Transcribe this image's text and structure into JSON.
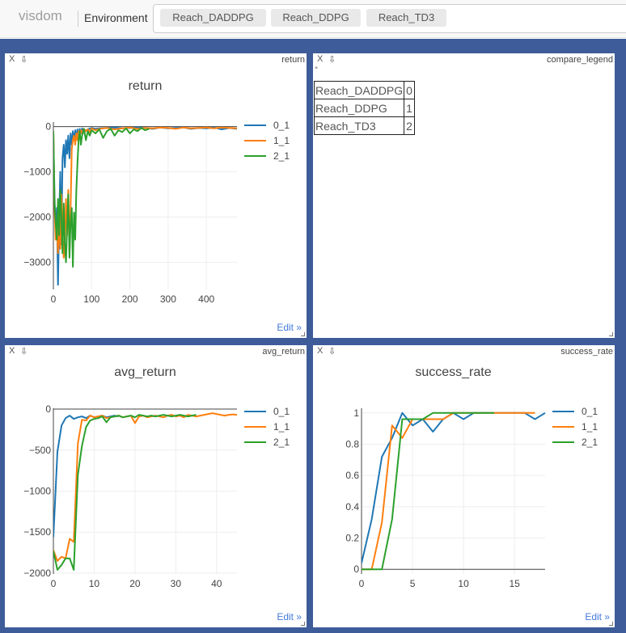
{
  "header": {
    "brand": "visdom",
    "env_label": "Environment",
    "env_tags": [
      "Reach_DADDPG",
      "Reach_DDPG",
      "Reach_TD3"
    ]
  },
  "pane_controls": {
    "close": "X",
    "download": "⇩",
    "edit": "Edit »"
  },
  "colors": {
    "workspace": "#3e5c99",
    "series": [
      "#1f77b4",
      "#ff7f0e",
      "#2ca02c"
    ],
    "link": "#447adb"
  },
  "panes": {
    "return": {
      "window_title": "return"
    },
    "compare_legend": {
      "window_title": "compare_legend",
      "quote": "\"",
      "rows": [
        {
          "name": "Reach_DADDPG",
          "id": "0"
        },
        {
          "name": "Reach_DDPG",
          "id": "1"
        },
        {
          "name": "Reach_TD3",
          "id": "2"
        }
      ]
    },
    "avg_return": {
      "window_title": "avg_return"
    },
    "success_rate": {
      "window_title": "success_rate"
    }
  },
  "chart_data": [
    {
      "id": "return",
      "type": "line",
      "title": "return",
      "xlabel": "",
      "ylabel": "",
      "xlim": [
        0,
        480
      ],
      "ylim": [
        -3600,
        100
      ],
      "xticks": [
        0,
        100,
        200,
        300,
        400
      ],
      "yticks": [
        0,
        -1000,
        -2000,
        -3000
      ],
      "grid": true,
      "legend": "top-right",
      "series": [
        {
          "name": "0_1",
          "x": [
            0,
            3,
            6,
            9,
            12,
            15,
            18,
            21,
            24,
            27,
            30,
            33,
            36,
            39,
            42,
            45,
            48,
            51,
            54,
            57,
            60,
            63,
            66,
            69,
            72,
            75,
            80,
            90,
            100,
            110,
            120,
            140,
            160,
            180,
            200,
            220,
            240,
            260,
            280,
            300,
            320,
            340,
            360,
            380,
            400,
            420,
            440,
            460,
            480
          ],
          "y": [
            -200,
            -1500,
            -2400,
            -1800,
            -3500,
            -2100,
            -1000,
            -2600,
            -700,
            -400,
            -900,
            -300,
            -600,
            -200,
            -700,
            -150,
            -400,
            -100,
            -300,
            -80,
            -250,
            -60,
            -200,
            -50,
            -150,
            -40,
            -120,
            -60,
            -30,
            -50,
            -40,
            -30,
            -20,
            -40,
            -30,
            -20,
            -30,
            -50,
            -20,
            -40,
            -30,
            -20,
            -50,
            -30,
            -40,
            -20,
            -60,
            -30,
            -50
          ]
        },
        {
          "name": "1_1",
          "x": [
            0,
            3,
            6,
            9,
            12,
            15,
            18,
            21,
            24,
            27,
            30,
            33,
            36,
            39,
            42,
            45,
            48,
            51,
            54,
            57,
            60,
            63,
            66,
            69,
            72,
            75,
            80,
            85,
            90,
            95,
            100,
            110,
            120,
            140,
            160,
            180,
            200,
            220,
            240,
            260,
            280,
            300,
            320,
            340,
            360,
            380,
            400,
            420,
            440,
            460,
            480
          ],
          "y": [
            -100,
            -1800,
            -2500,
            -2200,
            -2800,
            -2000,
            -2700,
            -1500,
            -2300,
            -2900,
            -2500,
            -1600,
            -2400,
            -1400,
            -2800,
            -1800,
            -500,
            -300,
            -200,
            -400,
            -150,
            -300,
            -100,
            -200,
            -80,
            -150,
            -50,
            -100,
            -60,
            -120,
            -40,
            -80,
            -50,
            -30,
            -60,
            -40,
            -20,
            -50,
            -30,
            -40,
            -20,
            -30,
            -50,
            -20,
            -40,
            -30,
            -20,
            -40,
            -20,
            -30,
            -40
          ]
        },
        {
          "name": "2_1",
          "x": [
            0,
            3,
            6,
            9,
            12,
            15,
            18,
            21,
            24,
            27,
            30,
            33,
            36,
            39,
            42,
            45,
            48,
            51,
            54,
            57,
            60,
            63,
            66,
            69,
            72,
            75,
            80,
            85,
            90,
            95,
            100,
            110,
            120,
            130,
            140,
            150,
            160,
            170,
            180,
            190,
            200,
            210,
            220,
            230,
            240,
            250
          ],
          "y": [
            -100,
            -1700,
            -2100,
            -2500,
            -1600,
            -2400,
            -1400,
            -2000,
            -2800,
            -1700,
            -2600,
            -3000,
            -2200,
            -1500,
            -2900,
            -2100,
            -1800,
            -3100,
            -1900,
            -2500,
            -1400,
            -800,
            -300,
            -100,
            -400,
            -200,
            -50,
            -300,
            -100,
            -200,
            -80,
            -150,
            -60,
            -250,
            -100,
            -50,
            -200,
            -80,
            -120,
            -40,
            -150,
            -60,
            -100,
            -30,
            -80,
            -50
          ]
        }
      ]
    },
    {
      "id": "avg_return",
      "type": "line",
      "title": "avg_return",
      "xlabel": "",
      "ylabel": "",
      "xlim": [
        0,
        45
      ],
      "ylim": [
        -2010,
        10
      ],
      "xticks": [
        0,
        10,
        20,
        30,
        40
      ],
      "yticks": [
        0,
        -500,
        -1000,
        -1500,
        -2000
      ],
      "grid": true,
      "legend": "top-right",
      "series": [
        {
          "name": "0_1",
          "x": [
            0,
            1,
            2,
            3,
            4,
            5,
            6,
            7,
            8,
            9,
            10,
            11,
            12,
            13,
            14,
            15,
            16
          ],
          "y": [
            -1560,
            -520,
            -200,
            -110,
            -80,
            -120,
            -100,
            -90,
            -110,
            -80,
            -100,
            -90,
            -80,
            -100,
            -90,
            -80,
            -90
          ]
        },
        {
          "name": "1_1",
          "x": [
            0,
            1,
            2,
            3,
            4,
            5,
            6,
            7,
            8,
            9,
            10,
            11,
            12,
            13,
            14,
            15,
            16,
            17,
            18,
            19,
            20,
            21,
            22,
            23,
            24,
            25,
            26,
            27,
            28,
            29,
            30,
            31,
            32,
            33,
            34,
            35,
            36,
            37,
            38,
            39,
            40,
            41,
            42,
            43,
            44,
            45
          ],
          "y": [
            -1720,
            -1850,
            -1800,
            -1820,
            -1580,
            -1620,
            -420,
            -130,
            -140,
            -80,
            -100,
            -90,
            -80,
            -110,
            -100,
            -90,
            -80,
            -100,
            -90,
            -80,
            -170,
            -90,
            -80,
            -100,
            -90,
            -80,
            -90,
            -100,
            -80,
            -70,
            -90,
            -80,
            -100,
            -70,
            -80,
            -90,
            -80,
            -70,
            -60,
            -50,
            -60,
            -70,
            -80,
            -70,
            -65,
            -70
          ]
        },
        {
          "name": "2_1",
          "x": [
            0,
            1,
            2,
            3,
            4,
            5,
            6,
            7,
            8,
            9,
            10,
            11,
            12,
            13,
            14,
            15,
            16,
            17,
            18,
            19,
            20,
            21,
            22,
            23,
            24,
            25,
            26,
            27,
            28,
            29,
            30,
            31,
            32,
            33,
            34,
            35
          ],
          "y": [
            -1730,
            -1960,
            -1900,
            -1820,
            -1820,
            -1960,
            -800,
            -450,
            -220,
            -140,
            -120,
            -110,
            -90,
            -160,
            -100,
            -90,
            -80,
            -100,
            -90,
            -80,
            -100,
            -70,
            -80,
            -90,
            -80,
            -90,
            -80,
            -70,
            -80,
            -90,
            -80,
            -70,
            -80,
            -90,
            -80,
            -70
          ]
        }
      ]
    },
    {
      "id": "success_rate",
      "type": "line",
      "title": "success_rate",
      "xlabel": "",
      "ylabel": "",
      "xlim": [
        0,
        18
      ],
      "ylim": [
        -0.03,
        1.03
      ],
      "xticks": [
        0,
        5,
        10,
        15
      ],
      "yticks": [
        0,
        0.2,
        0.4,
        0.6,
        0.8,
        1
      ],
      "grid": true,
      "legend": "top-right",
      "series": [
        {
          "name": "0_1",
          "x": [
            0,
            1,
            2,
            3,
            4,
            5,
            6,
            7,
            8,
            9,
            10,
            11,
            12,
            13,
            14,
            15,
            16,
            17,
            18
          ],
          "y": [
            0.04,
            0.32,
            0.72,
            0.84,
            1.0,
            0.92,
            0.96,
            0.88,
            0.96,
            1.0,
            0.96,
            1.0,
            1.0,
            1.0,
            1.0,
            1.0,
            1.0,
            0.96,
            1.0
          ]
        },
        {
          "name": "1_1",
          "x": [
            0,
            1,
            2,
            3,
            4,
            5,
            6,
            7,
            8,
            9,
            10,
            11,
            12,
            13,
            14,
            15,
            16,
            17
          ],
          "y": [
            0.0,
            0.0,
            0.3,
            0.92,
            0.84,
            0.96,
            0.96,
            0.96,
            0.96,
            1.0,
            1.0,
            1.0,
            1.0,
            1.0,
            1.0,
            1.0,
            1.0,
            1.0
          ]
        },
        {
          "name": "2_1",
          "x": [
            0,
            1,
            2,
            3,
            4,
            5,
            6,
            7,
            8,
            9,
            10,
            11,
            12,
            13
          ],
          "y": [
            0.0,
            0.0,
            0.0,
            0.32,
            0.96,
            0.96,
            0.96,
            1.0,
            1.0,
            1.0,
            1.0,
            1.0,
            1.0,
            1.0
          ]
        }
      ]
    }
  ]
}
